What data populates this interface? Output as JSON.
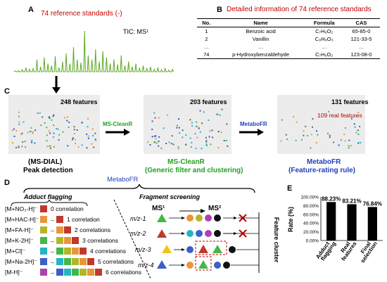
{
  "panelA": {
    "label": "A",
    "title": "74 reference standards (-)",
    "tic": "TIC: MS¹",
    "chromatogram": [
      0.02,
      0.03,
      0.05,
      0.1,
      0.06,
      0.08,
      0.3,
      0.12,
      0.35,
      0.2,
      0.15,
      0.38,
      0.1,
      0.25,
      0.45,
      0.2,
      0.6,
      0.3,
      0.22,
      1.0,
      0.4,
      0.3,
      0.55,
      0.25,
      0.5,
      0.35,
      0.2,
      0.3,
      0.18,
      0.4,
      0.15,
      0.25,
      0.12,
      0.2,
      0.1,
      0.15,
      0.08,
      0.12,
      0.06,
      0.1,
      0.05,
      0.08,
      0.04,
      0.06
    ]
  },
  "panelB": {
    "label": "B",
    "title": "Detailed information of 74 reference standards",
    "headers": [
      "No.",
      "Name",
      "Formula",
      "CAS"
    ],
    "rows": [
      [
        "1",
        "Benzoic acid",
        "C₇H₆O₂",
        "65-85-0"
      ],
      [
        "2",
        "Vanillin",
        "C₈H₈O₃",
        "121-33-5"
      ],
      [
        "…",
        "…",
        "…",
        "…"
      ],
      [
        "74",
        "p-Hydroxybenzaldehyde",
        "C₇H₆O₂",
        "123-08-0"
      ]
    ]
  },
  "panelC": {
    "label": "C",
    "plot1": {
      "features": "248 features",
      "caption1": "(MS-DIAL)",
      "caption2": "Peak detection"
    },
    "arrow1": "MS-CleanR",
    "plot2": {
      "features": "203 features",
      "caption1": "MS-CleanR",
      "caption2": "(Generic filter and clustering)"
    },
    "arrow2": "MetaboFR",
    "plot3": {
      "features": "131 features",
      "real": "109 real features",
      "caption1": "MetaboFR",
      "caption2": "(Feature-rating rule)"
    }
  },
  "panelD": {
    "label": "D",
    "title": "MetaboFR",
    "adduct_title": "Adduct flagging",
    "fragment_title": "Fragment screening",
    "ms1": "MS¹",
    "ms2": "MS²",
    "cluster_label": "Feature cluster",
    "adducts": [
      {
        "ion": "[M+NO₃-H]⁻",
        "label": "0 correlation"
      },
      {
        "ion": "[M+HAC-H]⁻",
        "label": "1 correlation"
      },
      {
        "ion": "[M+FA-H]⁻",
        "label": "2 correlations"
      },
      {
        "ion": "[M+K-2H]⁻",
        "label": "3 correlations"
      },
      {
        "ion": "[M+Cl]⁻",
        "label": "4 correlations"
      },
      {
        "ion": "[M+Na-2H]⁻",
        "label": "5 correlations"
      },
      {
        "ion": "[M-H]⁻",
        "label": "6 correlations"
      }
    ],
    "fragments": [
      "m/z-1",
      "m/z-2",
      "m/z-3",
      "m/z-4"
    ],
    "colors": {
      "c1": "#c0392b",
      "c2": "#e8963c",
      "c3": "#b5b52a",
      "c4": "#46b649",
      "c5": "#22b5c4",
      "c6": "#3a5fc8",
      "c7": "#b040b0",
      "black": "#111111",
      "cross": "#c00000"
    }
  },
  "panelE": {
    "label": "E",
    "chart_data": {
      "type": "bar",
      "categories": [
        "Adduct flagging",
        "Real features",
        "Final selection"
      ],
      "values": [
        88.23,
        83.21,
        76.84
      ],
      "data_labels": [
        "88.23%",
        "83.21%",
        "76.84%"
      ],
      "ylabel": "Rate (%)",
      "yticks": [
        "0.00%",
        "20.00%",
        "40.00%",
        "60.00%",
        "80.00%",
        "100.00%"
      ],
      "ylim": [
        0,
        100
      ],
      "bar_color": "#000000"
    }
  }
}
